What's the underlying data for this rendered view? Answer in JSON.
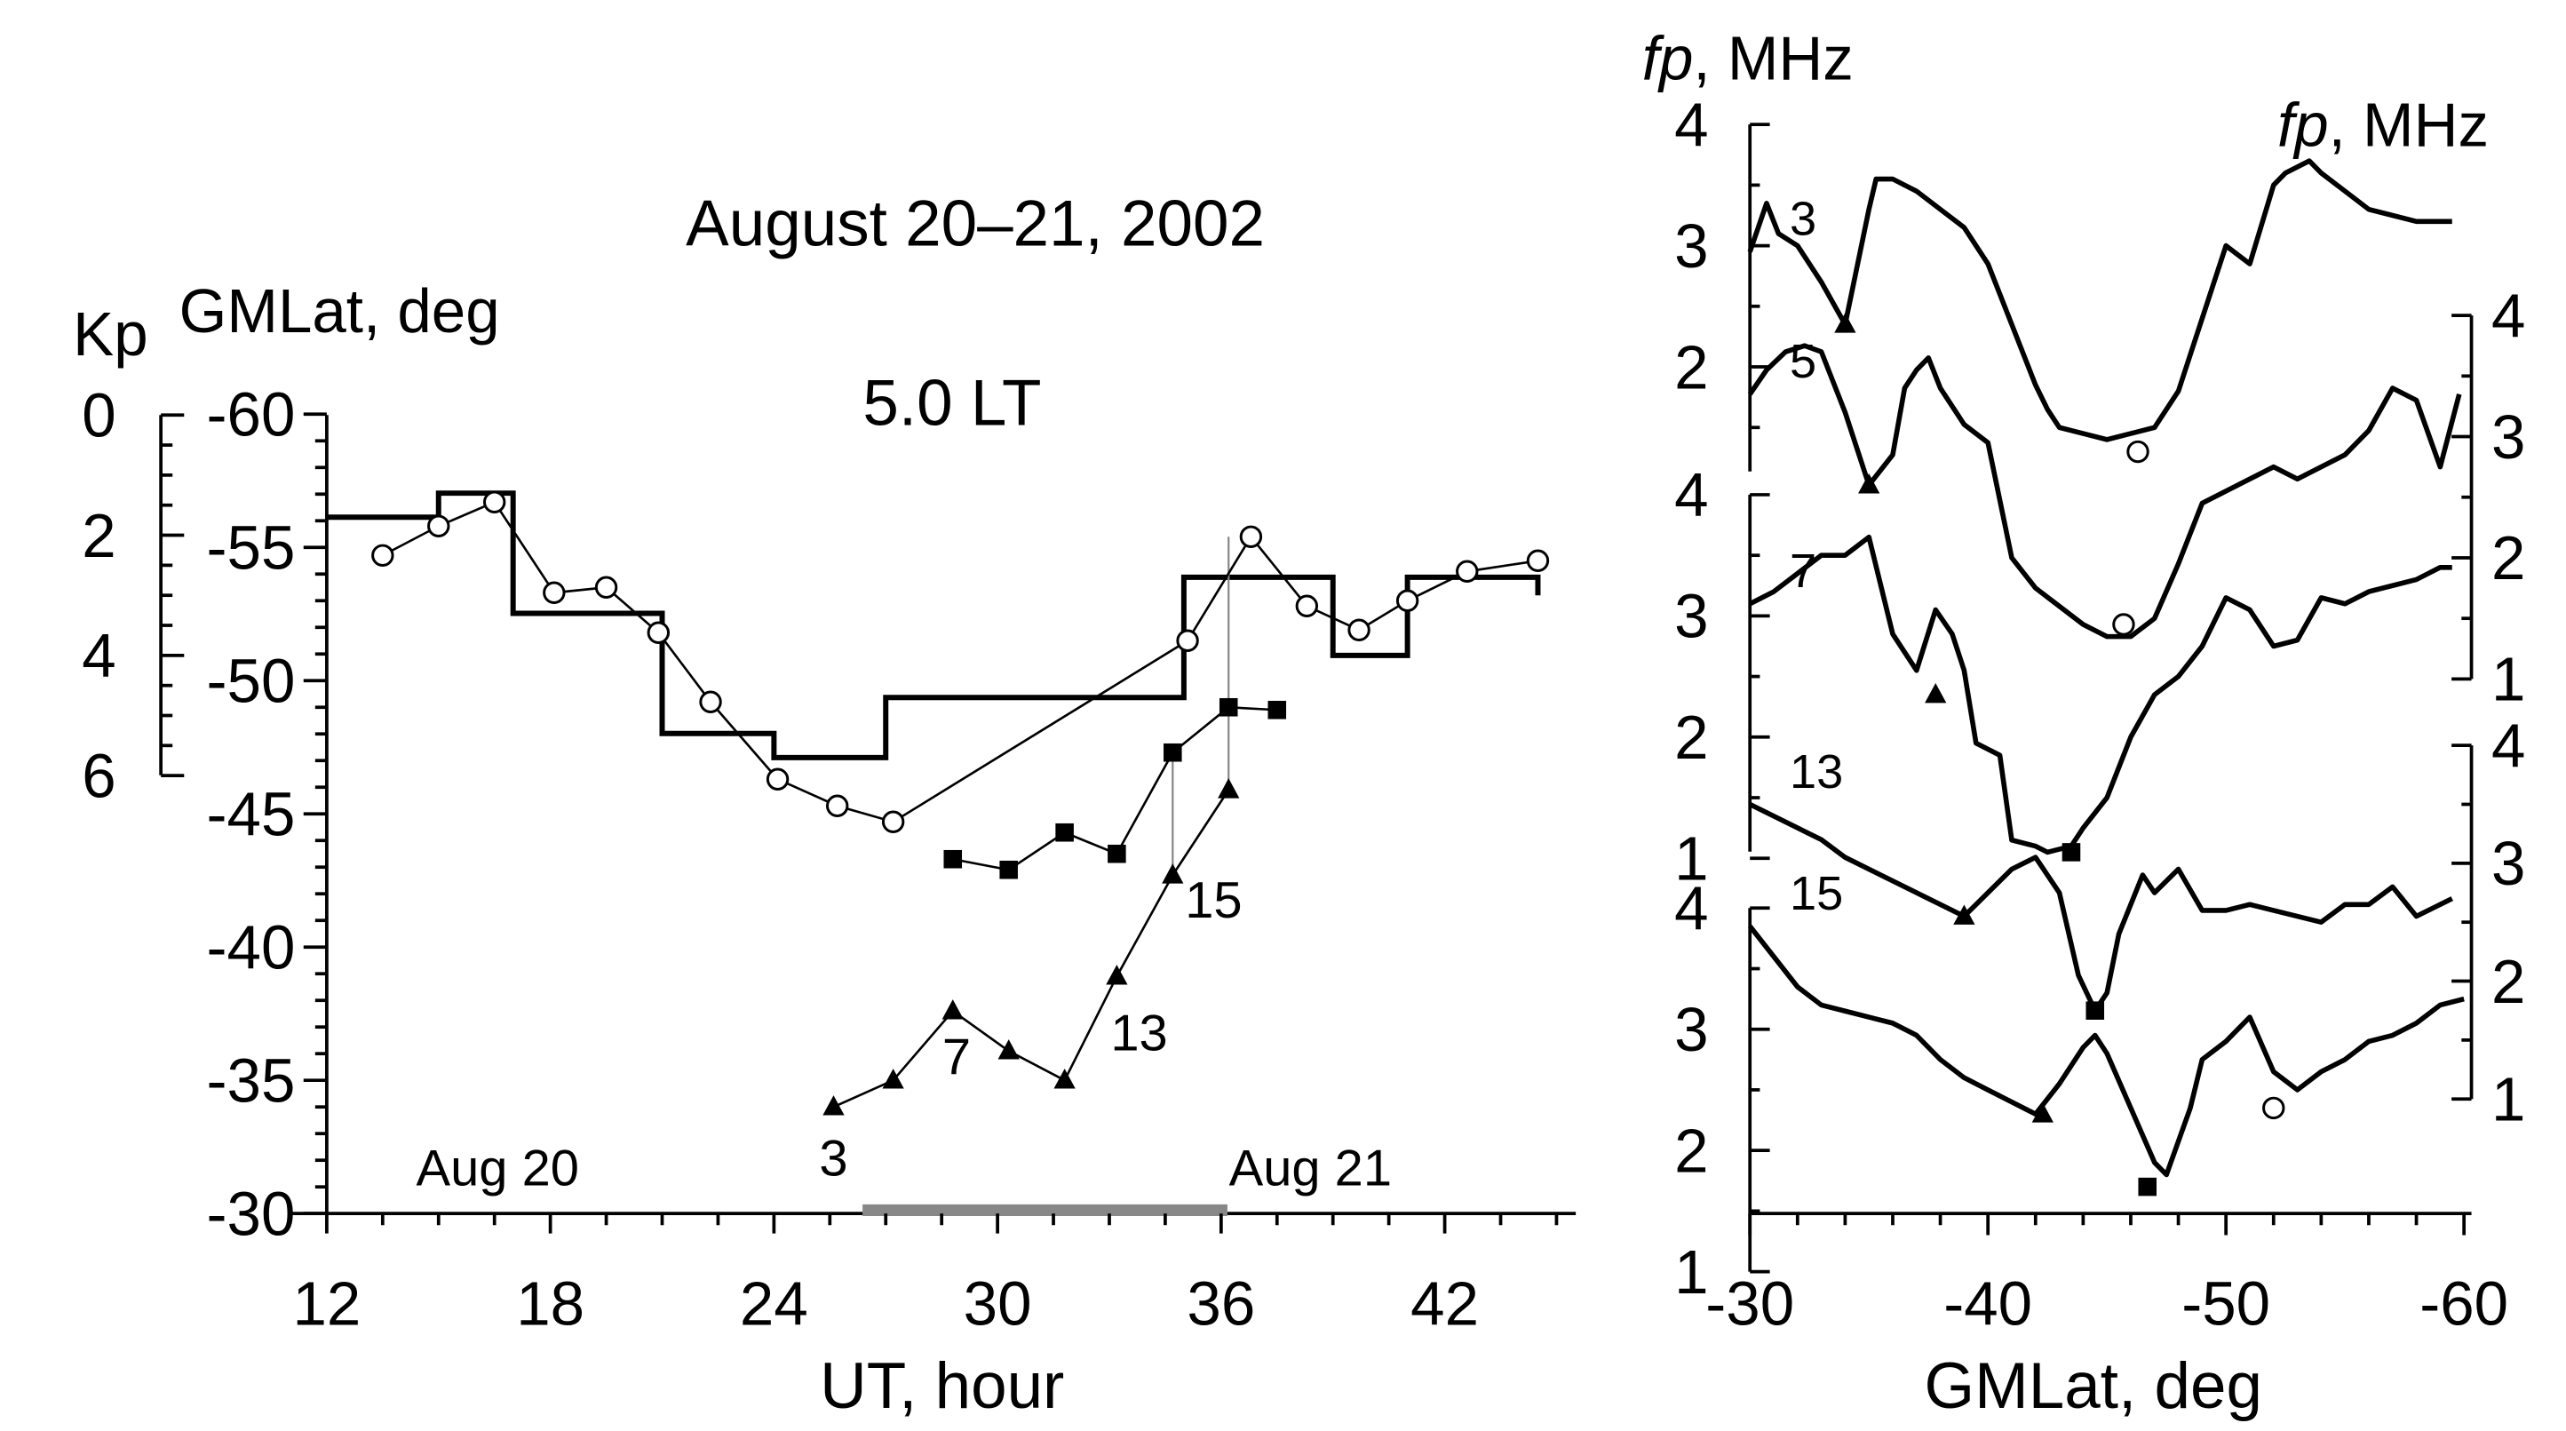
{
  "chart_data": [
    {
      "type": "line",
      "title": "August 20–21, 2002",
      "subtitle": "5.0 LT",
      "xlabel": "UT, hour",
      "ylabel": "GMLat, deg",
      "ylabel_secondary": "Kp",
      "xlim": [
        12,
        45
      ],
      "ylim": [
        -30,
        -60
      ],
      "kp_lim": [
        0,
        6
      ],
      "x_ticks": [
        "12",
        "18",
        "24",
        "30",
        "36",
        "42"
      ],
      "y_ticks": [
        "-60",
        "-55",
        "-50",
        "-45",
        "-40",
        "-35",
        "-30"
      ],
      "kp_ticks": [
        "0",
        "2",
        "4",
        "6"
      ],
      "date_labels": [
        "Aug 20",
        "Aug 21"
      ],
      "kp_step": {
        "name": "Kp",
        "x": [
          12,
          15,
          15,
          17,
          17,
          18,
          18,
          21,
          21,
          24,
          24,
          27,
          27,
          30,
          30,
          33,
          33,
          35,
          35,
          36,
          36,
          39,
          39,
          41,
          41,
          42,
          42,
          44.5,
          44.5
        ],
        "kp": [
          1.7,
          1.7,
          1.3,
          1.3,
          3.3,
          3.3,
          3.3,
          3.3,
          5.3,
          5.3,
          5.7,
          5.7,
          4.7,
          4.7,
          4.7,
          4.7,
          4.7,
          4.7,
          2.7,
          2.7,
          2.7,
          2.7,
          4.0,
          4.0,
          2.7,
          2.7,
          2.7,
          2.7,
          3.0
        ]
      },
      "series": [
        {
          "name": "trough-latitude (open circles)",
          "marker": "circle",
          "x": [
            13.5,
            15.0,
            16.5,
            18.1,
            19.5,
            20.9,
            22.3,
            24.1,
            25.7,
            27.2,
            35.1,
            36.8,
            38.3,
            39.7,
            41.0,
            42.6,
            44.5
          ],
          "y": [
            -54.7,
            -55.8,
            -56.7,
            -53.3,
            -53.5,
            -51.8,
            -49.2,
            -46.3,
            -45.3,
            -44.7,
            -51.5,
            -55.4,
            -52.8,
            -51.9,
            -53.0,
            -54.1,
            -54.5
          ]
        },
        {
          "name": "squares",
          "marker": "square",
          "x": [
            28.8,
            30.3,
            31.8,
            33.2,
            34.7,
            36.2,
            37.5
          ],
          "y": [
            -43.3,
            -42.9,
            -44.3,
            -43.5,
            -47.3,
            -49.0,
            -48.9
          ]
        },
        {
          "name": "triangles",
          "marker": "triangle",
          "x": [
            25.6,
            27.2,
            28.8,
            30.3,
            31.8,
            33.2,
            34.7,
            36.2
          ],
          "y": [
            -34.0,
            -35.0,
            -37.6,
            -36.1,
            -35.0,
            -38.9,
            -42.7,
            -45.9
          ]
        }
      ],
      "point_labels": [
        {
          "text": "3",
          "x": 25.6,
          "y": -32.1
        },
        {
          "text": "7",
          "x": 28.9,
          "y": -35.9
        },
        {
          "text": "13",
          "x": 33.8,
          "y": -36.8
        },
        {
          "text": "15",
          "x": 35.8,
          "y": -41.8
        }
      ],
      "connectors": [
        {
          "x": 34.7,
          "y1": -42.7,
          "y2": -47.3
        },
        {
          "x": 36.2,
          "y1": -45.9,
          "y2": -55.4
        }
      ],
      "ut_bar": [
        26.0,
        35.8
      ]
    },
    {
      "type": "line",
      "title": "",
      "xlabel": "GMLat, deg",
      "ylabel": "fp, MHz",
      "ylabel_italic_part": "fp",
      "ylabel_rest": ", MHz",
      "xlim": [
        -30,
        -60
      ],
      "x_ticks": [
        "-30",
        "-40",
        "-50",
        "-60"
      ],
      "left_axis_upper_ticks": [
        "4",
        "3",
        "2"
      ],
      "left_axis_middle_ticks": [
        "4",
        "3",
        "2",
        "1"
      ],
      "left_axis_lower_ticks": [
        "4",
        "3",
        "2",
        "1"
      ],
      "right_axis_upper_ticks": [
        "4",
        "3",
        "2",
        "1"
      ],
      "right_axis_lower_ticks": [
        "4",
        "3",
        "2",
        "1"
      ],
      "profiles": [
        {
          "label": "3",
          "scale": "left-upper",
          "x": [
            -30.0,
            -30.7,
            -31.2,
            -32.0,
            -33.0,
            -34.0,
            -35.0,
            -35.3,
            -36.0,
            -37.0,
            -38.0,
            -39.0,
            -40.0,
            -41.0,
            -42.0,
            -42.5,
            -43.0,
            -44.0,
            -45.0,
            -46.0,
            -47.0,
            -48.0,
            -49.0,
            -50.0,
            -51.0,
            -52.0,
            -52.5,
            -53.5,
            -54.0,
            -55.0,
            -56.0,
            -57.0,
            -58.0,
            -59.0,
            -59.5
          ],
          "fp": [
            2.95,
            3.35,
            3.1,
            3.0,
            2.7,
            2.35,
            3.3,
            3.55,
            3.55,
            3.45,
            3.3,
            3.15,
            2.85,
            2.35,
            1.85,
            1.65,
            1.5,
            1.45,
            1.4,
            1.45,
            1.5,
            1.8,
            2.4,
            3.0,
            2.85,
            3.5,
            3.6,
            3.7,
            3.6,
            3.45,
            3.3,
            3.25,
            3.2,
            3.2,
            3.2
          ],
          "markers": [
            {
              "shape": "triangle",
              "x": -34.0,
              "fp": 2.35
            },
            {
              "shape": "circle",
              "x": -46.3,
              "fp": 1.3
            }
          ]
        },
        {
          "label": "5",
          "scale": "right-upper",
          "x": [
            -30.0,
            -30.7,
            -31.5,
            -32.3,
            -33.0,
            -34.0,
            -35.0,
            -36.0,
            -36.5,
            -37.0,
            -37.5,
            -38.0,
            -39.0,
            -40.0,
            -41.0,
            -42.0,
            -43.0,
            -44.0,
            -45.0,
            -46.0,
            -47.0,
            -48.0,
            -49.0,
            -50.0,
            -51.0,
            -52.0,
            -53.0,
            -54.0,
            -55.0,
            -56.0,
            -57.0,
            -58.0,
            -59.0,
            -59.8
          ],
          "fp": [
            3.35,
            3.55,
            3.7,
            3.75,
            3.7,
            3.2,
            2.6,
            2.85,
            3.4,
            3.55,
            3.65,
            3.4,
            3.1,
            2.95,
            2.0,
            1.75,
            1.6,
            1.45,
            1.35,
            1.35,
            1.5,
            1.95,
            2.45,
            2.55,
            2.65,
            2.75,
            2.65,
            2.75,
            2.85,
            3.05,
            3.4,
            3.3,
            2.75,
            3.35
          ],
          "markers": [
            {
              "shape": "triangle",
              "x": -35.0,
              "fp": 2.6
            },
            {
              "shape": "circle",
              "x": -45.7,
              "fp": 1.45
            }
          ]
        },
        {
          "label": "7",
          "scale": "left-middle",
          "x": [
            -30.0,
            -31.0,
            -32.0,
            -33.0,
            -34.0,
            -35.0,
            -36.0,
            -37.0,
            -37.8,
            -38.5,
            -39.0,
            -39.5,
            -40.5,
            -41.0,
            -42.0,
            -42.5,
            -43.5,
            -44.0,
            -45.0,
            -46.0,
            -47.0,
            -48.0,
            -49.0,
            -50.0,
            -51.0,
            -52.0,
            -53.0,
            -54.0,
            -55.0,
            -56.0,
            -57.0,
            -58.0,
            -59.0,
            -59.5
          ],
          "fp": [
            3.1,
            3.2,
            3.35,
            3.5,
            3.5,
            3.65,
            2.85,
            2.55,
            3.05,
            2.85,
            2.55,
            1.95,
            1.85,
            1.15,
            1.1,
            1.05,
            1.1,
            1.25,
            1.5,
            2.0,
            2.35,
            2.5,
            2.75,
            3.15,
            3.05,
            2.75,
            2.8,
            3.15,
            3.1,
            3.2,
            3.25,
            3.3,
            3.4,
            3.4
          ],
          "markers": [
            {
              "shape": "triangle",
              "x": -37.8,
              "fp": 2.35
            },
            {
              "shape": "square",
              "x": -43.5,
              "fp": 1.05
            }
          ]
        },
        {
          "label": "13",
          "scale": "right-lower",
          "x": [
            -30.0,
            -31.0,
            -32.0,
            -33.0,
            -34.0,
            -35.0,
            -36.0,
            -37.0,
            -38.0,
            -39.0,
            -40.0,
            -41.0,
            -42.0,
            -43.0,
            -43.8,
            -44.5,
            -45.0,
            -45.5,
            -46.5,
            -47.0,
            -48.0,
            -49.0,
            -50.0,
            -51.0,
            -52.0,
            -53.0,
            -54.0,
            -55.0,
            -56.0,
            -57.0,
            -58.0,
            -59.0,
            -59.5
          ],
          "fp": [
            3.5,
            3.4,
            3.3,
            3.2,
            3.05,
            2.95,
            2.85,
            2.75,
            2.65,
            2.55,
            2.75,
            2.95,
            3.05,
            2.75,
            2.05,
            1.75,
            1.9,
            2.4,
            2.9,
            2.75,
            2.95,
            2.6,
            2.6,
            2.65,
            2.6,
            2.55,
            2.5,
            2.65,
            2.65,
            2.8,
            2.55,
            2.65,
            2.7
          ],
          "markers": [
            {
              "shape": "triangle",
              "x": -39.0,
              "fp": 2.55
            },
            {
              "shape": "square",
              "x": -44.5,
              "fp": 1.75
            }
          ]
        },
        {
          "label": "15",
          "scale": "left-lower",
          "x": [
            -30.0,
            -31.0,
            -32.0,
            -33.0,
            -34.0,
            -35.0,
            -36.0,
            -37.0,
            -38.0,
            -39.0,
            -40.0,
            -41.0,
            -42.0,
            -43.0,
            -44.0,
            -44.5,
            -45.0,
            -46.0,
            -47.0,
            -47.5,
            -48.5,
            -49.0,
            -50.0,
            -51.0,
            -52.0,
            -53.0,
            -54.0,
            -55.0,
            -56.0,
            -57.0,
            -58.0,
            -59.0,
            -60.0
          ],
          "fp": [
            3.85,
            3.6,
            3.35,
            3.2,
            3.15,
            3.1,
            3.05,
            2.95,
            2.75,
            2.6,
            2.5,
            2.4,
            2.3,
            2.55,
            2.85,
            2.95,
            2.8,
            2.35,
            1.9,
            1.8,
            2.35,
            2.75,
            2.9,
            3.1,
            2.65,
            2.5,
            2.65,
            2.75,
            2.9,
            2.95,
            3.05,
            3.2,
            3.25
          ],
          "markers": [
            {
              "shape": "triangle",
              "x": -42.3,
              "fp": 2.3
            },
            {
              "shape": "square",
              "x": -46.7,
              "fp": 1.7
            },
            {
              "shape": "circle",
              "x": -52.0,
              "fp": 2.35
            }
          ]
        }
      ]
    }
  ]
}
